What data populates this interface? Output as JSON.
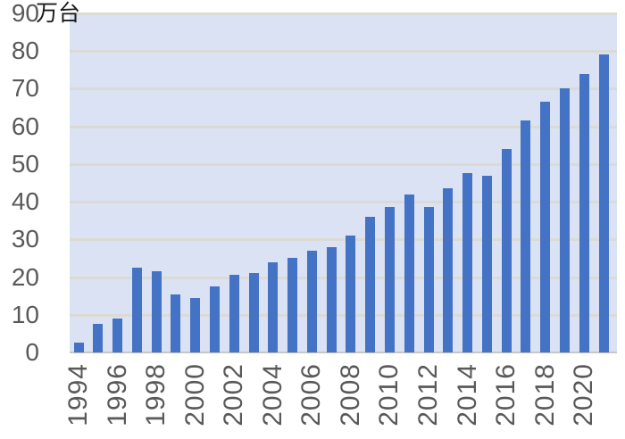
{
  "chart_data": {
    "type": "bar",
    "title": "",
    "unit_label": "万台",
    "xlabel": "",
    "ylabel": "万台",
    "x": [
      1994,
      1995,
      1996,
      1997,
      1998,
      1999,
      2000,
      2001,
      2002,
      2003,
      2004,
      2005,
      2006,
      2007,
      2008,
      2009,
      2010,
      2011,
      2012,
      2013,
      2014,
      2015,
      2016,
      2017,
      2018,
      2019,
      2020,
      2021
    ],
    "values": [
      2.5,
      7.5,
      9,
      22.5,
      21.5,
      15.5,
      14.5,
      17.5,
      20.5,
      21,
      24,
      25,
      27,
      28,
      31,
      36,
      38.5,
      42,
      38.5,
      43.5,
      47.5,
      47,
      54,
      61.5,
      66.5,
      70,
      74,
      79
    ],
    "x_tick_labels": [
      "1994",
      "1996",
      "1998",
      "2000",
      "2002",
      "2004",
      "2006",
      "2008",
      "2010",
      "2012",
      "2014",
      "2016",
      "2018",
      "2020"
    ],
    "x_tick_every": 2,
    "y_ticks": [
      0,
      10,
      20,
      30,
      40,
      50,
      60,
      70,
      80,
      90
    ],
    "ylim": [
      0,
      90
    ],
    "grid": true,
    "legend": "none",
    "colors": {
      "bar": "#4472C4",
      "plot_background": "#DAE2F3",
      "gridline": "#DCDAD4",
      "axis_line": "#C9C7C3",
      "tick_text": "#595959",
      "unit_text": "#1a1a1a",
      "page_background": "#ffffff"
    }
  }
}
